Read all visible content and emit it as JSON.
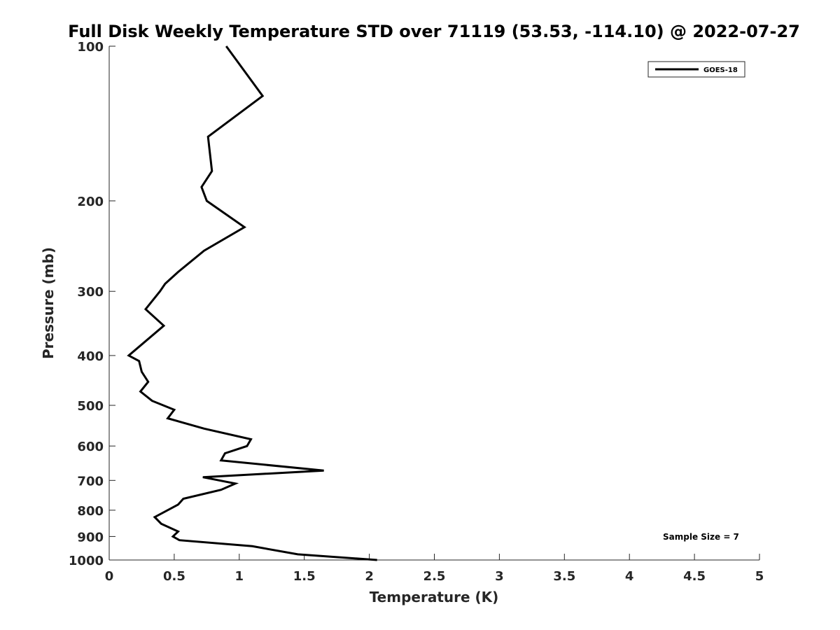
{
  "chart_data": {
    "type": "line",
    "title": "Full Disk Weekly Temperature STD over 71119 (53.53, -114.10) @ 2022-07-27",
    "xlabel": "Temperature (K)",
    "ylabel": "Pressure (mb)",
    "xlim": [
      0,
      5
    ],
    "ylim": [
      100,
      1000
    ],
    "y_scale": "log",
    "y_reversed": true,
    "grid": false,
    "legend_position": "top-right",
    "x_ticks": [
      "0",
      "0.5",
      "1",
      "1.5",
      "2",
      "2.5",
      "3",
      "3.5",
      "4",
      "4.5",
      "5"
    ],
    "y_ticks": [
      "100",
      "200",
      "300",
      "400",
      "500",
      "600",
      "700",
      "800",
      "900",
      "1000"
    ],
    "series": [
      {
        "name": "GOES-18",
        "color": "#000000",
        "points": [
          {
            "x": 0.9,
            "y": 100
          },
          {
            "x": 1.18,
            "y": 125
          },
          {
            "x": 0.76,
            "y": 150
          },
          {
            "x": 0.79,
            "y": 175
          },
          {
            "x": 0.71,
            "y": 188
          },
          {
            "x": 0.75,
            "y": 200
          },
          {
            "x": 1.04,
            "y": 225
          },
          {
            "x": 0.73,
            "y": 250
          },
          {
            "x": 0.53,
            "y": 275
          },
          {
            "x": 0.43,
            "y": 290
          },
          {
            "x": 0.39,
            "y": 300
          },
          {
            "x": 0.28,
            "y": 325
          },
          {
            "x": 0.42,
            "y": 350
          },
          {
            "x": 0.15,
            "y": 400
          },
          {
            "x": 0.23,
            "y": 410
          },
          {
            "x": 0.25,
            "y": 430
          },
          {
            "x": 0.3,
            "y": 450
          },
          {
            "x": 0.24,
            "y": 470
          },
          {
            "x": 0.33,
            "y": 490
          },
          {
            "x": 0.5,
            "y": 510
          },
          {
            "x": 0.45,
            "y": 530
          },
          {
            "x": 0.73,
            "y": 555
          },
          {
            "x": 1.09,
            "y": 582
          },
          {
            "x": 1.06,
            "y": 600
          },
          {
            "x": 0.89,
            "y": 620
          },
          {
            "x": 0.86,
            "y": 640
          },
          {
            "x": 1.65,
            "y": 670
          },
          {
            "x": 0.72,
            "y": 690
          },
          {
            "x": 0.97,
            "y": 710
          },
          {
            "x": 0.86,
            "y": 730
          },
          {
            "x": 0.57,
            "y": 760
          },
          {
            "x": 0.53,
            "y": 780
          },
          {
            "x": 0.35,
            "y": 825
          },
          {
            "x": 0.4,
            "y": 850
          },
          {
            "x": 0.53,
            "y": 880
          },
          {
            "x": 0.49,
            "y": 900
          },
          {
            "x": 0.54,
            "y": 915
          },
          {
            "x": 1.1,
            "y": 940
          },
          {
            "x": 1.45,
            "y": 975
          },
          {
            "x": 2.06,
            "y": 1000
          }
        ]
      }
    ],
    "annotation": "Sample Size = 7"
  }
}
